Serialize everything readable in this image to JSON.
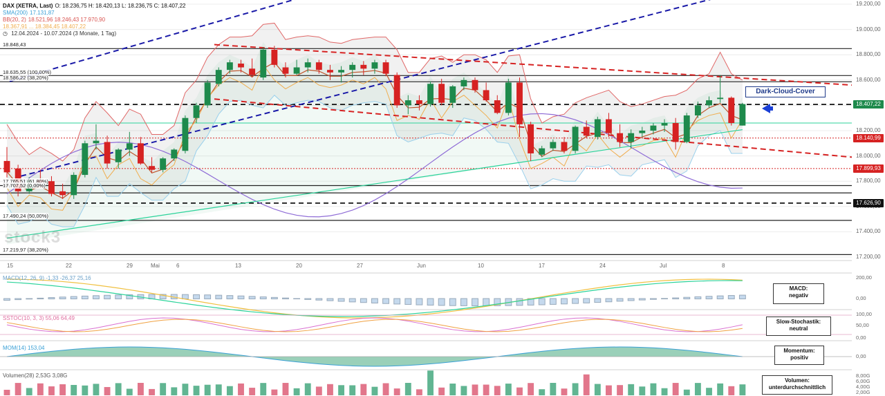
{
  "header": {
    "instrument": "DAX (XETRA, Last)",
    "ohlc": "O: 18.236,75  H: 18.420,13  L: 18.236,75  C: 18.407,22",
    "sma_label": "SMA(200)",
    "sma_value": "17.131,87",
    "bb_label": "BB(20, 2)",
    "bb_values": "18.521,96  18.246,43  17.970,90",
    "ichimoku_values": "18.367,91 ... 18.384,45  18.407,22",
    "range": "12.04.2024 - 10.07.2024  (3 Monate, 1 Tag)"
  },
  "fib_labels": {
    "l0": "18.848,43",
    "l1": "18.635,55 (100,00%)",
    "l2": "18.586,22 (38,20%)",
    "l3": "17.765,51 (61,80%)",
    "l4": "17.707,52 (0,00%)",
    "l5": "17.490,24 (50,00%)",
    "l6": "17.219,97 (38,20%)"
  },
  "price_axis": [
    "19.200,00",
    "19.000,00",
    "18.800,00",
    "18.600,00",
    "18.400,00",
    "18.200,00",
    "18.000,00",
    "17.800,00",
    "17.600,00",
    "17.400,00",
    "17.200,00"
  ],
  "price_tags": [
    {
      "text": "18.407,22",
      "color": "#1e8a4c",
      "price": 18407
    },
    {
      "text": "18.140,99",
      "color": "#d62222",
      "price": 18141
    },
    {
      "text": "17.899,93",
      "color": "#d62222",
      "price": 17900
    },
    {
      "text": "17.626,90",
      "color": "#111111",
      "price": 17627
    }
  ],
  "x_labels": [
    "15",
    "22",
    "29",
    "Mai",
    "6",
    "13",
    "20",
    "27",
    "Jun",
    "10",
    "17",
    "24",
    "Jul",
    "8"
  ],
  "annotation": "Dark-Cloud-Cover",
  "indicators": {
    "macd": {
      "legend": "MACD(12, 26, 9)  -1,33  -26,37  25,16",
      "box": "MACD:\nnegativ",
      "ticks": [
        "200,00",
        "0,00"
      ]
    },
    "stoch": {
      "legend": "SSTOC(10, 3, 3)  55,06  64,49",
      "box": "Slow-Stochastik:\nneutral",
      "ticks": [
        "100,00",
        "50,00",
        "0,00"
      ]
    },
    "mom": {
      "legend": "MOM(14)  153,04",
      "box": "Momentum:\npositiv",
      "ticks": [
        "0,00"
      ]
    },
    "vol": {
      "legend": "Volumen(28)  2,53G  3,08G",
      "box": "Volumen:\nunterdurchschnittlich",
      "ticks": [
        "8,00G",
        "6,00G",
        "4,00G",
        "2,00G"
      ]
    }
  },
  "watermark": "stock3",
  "chart_data": {
    "type": "candlestick",
    "ylim": [
      17150,
      19250
    ],
    "candles": [
      [
        17960,
        18070,
        17830,
        17870
      ],
      [
        17900,
        17930,
        17680,
        17720
      ],
      [
        17720,
        17830,
        17700,
        17810
      ],
      [
        17810,
        17890,
        17760,
        17790
      ],
      [
        17800,
        17840,
        17680,
        17700
      ],
      [
        17720,
        17780,
        17660,
        17690
      ],
      [
        17690,
        17870,
        17660,
        17850
      ],
      [
        17850,
        18120,
        17830,
        18100
      ],
      [
        18100,
        18250,
        18050,
        18120
      ],
      [
        18110,
        18160,
        17900,
        17940
      ],
      [
        17950,
        18060,
        17900,
        18050
      ],
      [
        18050,
        18190,
        18000,
        18100
      ],
      [
        18100,
        18150,
        17930,
        17940
      ],
      [
        17920,
        17990,
        17870,
        17890
      ],
      [
        17890,
        17990,
        17870,
        17980
      ],
      [
        17980,
        18060,
        17960,
        18050
      ],
      [
        18040,
        18320,
        18020,
        18300
      ],
      [
        18300,
        18420,
        18260,
        18400
      ],
      [
        18400,
        18600,
        18380,
        18580
      ],
      [
        18570,
        18700,
        18550,
        18680
      ],
      [
        18680,
        18760,
        18650,
        18740
      ],
      [
        18730,
        18760,
        18660,
        18700
      ],
      [
        18690,
        18770,
        18620,
        18640
      ],
      [
        18620,
        18860,
        18600,
        18840
      ],
      [
        18840,
        18870,
        18700,
        18720
      ],
      [
        18700,
        18740,
        18620,
        18650
      ],
      [
        18650,
        18760,
        18640,
        18700
      ],
      [
        18700,
        18770,
        18660,
        18740
      ],
      [
        18740,
        18760,
        18650,
        18680
      ],
      [
        18680,
        18720,
        18600,
        18660
      ],
      [
        18660,
        18710,
        18580,
        18680
      ],
      [
        18680,
        18740,
        18620,
        18720
      ],
      [
        18720,
        18750,
        18640,
        18690
      ],
      [
        18690,
        18760,
        18650,
        18740
      ],
      [
        18740,
        18760,
        18630,
        18650
      ],
      [
        18640,
        18660,
        18380,
        18400
      ],
      [
        18400,
        18480,
        18330,
        18440
      ],
      [
        18440,
        18480,
        18360,
        18410
      ],
      [
        18410,
        18590,
        18390,
        18570
      ],
      [
        18570,
        18610,
        18400,
        18420
      ],
      [
        18420,
        18560,
        18380,
        18550
      ],
      [
        18550,
        18620,
        18520,
        18600
      ],
      [
        18600,
        18620,
        18500,
        18520
      ],
      [
        18520,
        18580,
        18430,
        18440
      ],
      [
        18440,
        18480,
        18330,
        18340
      ],
      [
        18340,
        18610,
        18320,
        18580
      ],
      [
        18580,
        18620,
        18150,
        18250
      ],
      [
        18250,
        18270,
        17960,
        18020
      ],
      [
        18010,
        18080,
        17990,
        18060
      ],
      [
        18060,
        18130,
        18040,
        18110
      ],
      [
        18110,
        18150,
        18020,
        18040
      ],
      [
        18040,
        18240,
        18020,
        18230
      ],
      [
        18230,
        18280,
        18140,
        18160
      ],
      [
        18150,
        18310,
        18130,
        18290
      ],
      [
        18290,
        18340,
        18150,
        18180
      ],
      [
        18180,
        18250,
        18070,
        18110
      ],
      [
        18110,
        18210,
        18060,
        18180
      ],
      [
        18180,
        18230,
        18150,
        18200
      ],
      [
        18200,
        18260,
        18170,
        18240
      ],
      [
        18240,
        18290,
        18190,
        18260
      ],
      [
        18260,
        18300,
        18050,
        18110
      ],
      [
        18110,
        18340,
        18100,
        18320
      ],
      [
        18320,
        18430,
        18300,
        18400
      ],
      [
        18400,
        18470,
        18380,
        18440
      ],
      [
        18450,
        18640,
        18420,
        18460
      ],
      [
        18460,
        18470,
        18240,
        18260
      ],
      [
        18240,
        18420,
        18240,
        18410
      ]
    ],
    "levels": [
      18848.43,
      18635.55,
      18586.22,
      17765.51,
      17707.52,
      17490.24,
      17219.97
    ],
    "dashed_levels": [
      18407,
      17627
    ],
    "dotted_levels": [
      18141,
      17900
    ]
  }
}
